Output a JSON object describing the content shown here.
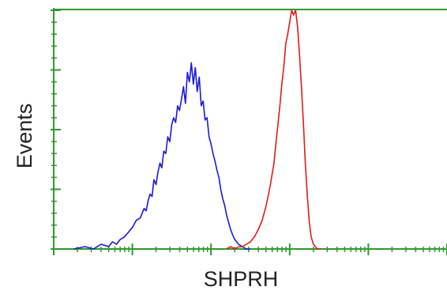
{
  "chart_data": {
    "type": "line",
    "title": "",
    "xlabel": "SHPRH",
    "ylabel": "Events",
    "xscale": "log",
    "grid": false,
    "legend": "none",
    "axis_color": "#2e9a2e",
    "series": [
      {
        "color": "#1a1ad8",
        "x": [
          0.18,
          0.25,
          0.32,
          0.4,
          0.5,
          0.56,
          0.63,
          0.7,
          0.79,
          0.89,
          1.0,
          1.12,
          1.26,
          1.41,
          1.5,
          1.58,
          1.68,
          1.78,
          1.88,
          2.0,
          2.11,
          2.24,
          2.37,
          2.51,
          2.66,
          2.82,
          2.99,
          3.16,
          3.35,
          3.55,
          3.76,
          3.98,
          4.22,
          4.47,
          4.73,
          5.01,
          5.31,
          5.62,
          5.96,
          6.31,
          6.68,
          7.08,
          7.5,
          7.94,
          8.41,
          8.91,
          9.44,
          10.0,
          10.6,
          11.2,
          11.9,
          12.6,
          13.3,
          14.1,
          15.0,
          15.8,
          16.8,
          17.8,
          18.8,
          20.0,
          22.4,
          25.1,
          28.2,
          31.6
        ],
        "y": [
          0.0,
          0.01,
          0.0,
          0.02,
          0.01,
          0.03,
          0.02,
          0.04,
          0.05,
          0.07,
          0.09,
          0.12,
          0.13,
          0.17,
          0.16,
          0.2,
          0.23,
          0.22,
          0.29,
          0.27,
          0.32,
          0.36,
          0.34,
          0.41,
          0.4,
          0.47,
          0.45,
          0.52,
          0.55,
          0.53,
          0.6,
          0.58,
          0.63,
          0.68,
          0.61,
          0.74,
          0.7,
          0.78,
          0.69,
          0.76,
          0.66,
          0.72,
          0.6,
          0.62,
          0.54,
          0.55,
          0.47,
          0.44,
          0.4,
          0.37,
          0.33,
          0.3,
          0.25,
          0.21,
          0.18,
          0.14,
          0.11,
          0.08,
          0.06,
          0.04,
          0.02,
          0.01,
          0.0,
          0.0
        ]
      },
      {
        "color": "#e01b1b",
        "x": [
          15.8,
          17.8,
          20.0,
          22.4,
          25.1,
          28.2,
          31.6,
          35.5,
          39.8,
          44.7,
          50.1,
          56.2,
          63.1,
          66.8,
          70.8,
          75.0,
          79.4,
          84.1,
          89.1,
          94.4,
          100,
          106,
          112,
          119,
          126,
          133,
          141,
          150,
          158,
          168,
          178,
          188,
          200,
          224,
          251
        ],
        "y": [
          0.0,
          0.01,
          0.0,
          0.01,
          0.01,
          0.02,
          0.03,
          0.05,
          0.08,
          0.12,
          0.18,
          0.26,
          0.36,
          0.44,
          0.52,
          0.6,
          0.69,
          0.76,
          0.86,
          0.9,
          0.95,
          1.0,
          0.98,
          1.0,
          0.93,
          0.82,
          0.68,
          0.52,
          0.36,
          0.22,
          0.11,
          0.05,
          0.02,
          0.0,
          0.0
        ]
      }
    ]
  }
}
